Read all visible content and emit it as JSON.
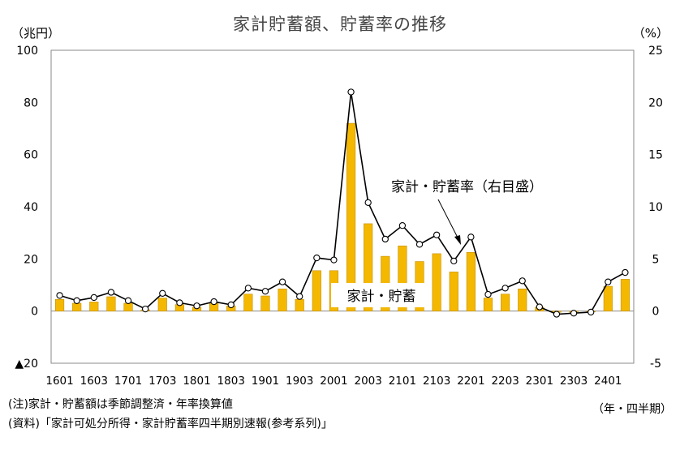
{
  "chart_data": {
    "type": "bar+line",
    "title": "家計貯蓄額、貯蓄率の推移",
    "left_unit": "（兆円）",
    "right_unit": "（%）",
    "x_unit": "（年・四半期）",
    "notes": [
      "(注)家計・貯蓄額は季節調整済・年率換算値",
      "(資料)「家計可処分所得・家計貯蓄率四半期別速報(参考系列)」"
    ],
    "left_axis": {
      "ylim": [
        -20,
        100
      ],
      "ticks": [
        100,
        80,
        60,
        40,
        20,
        0,
        -20
      ],
      "tick_labels": [
        "100",
        "80",
        "60",
        "40",
        "20",
        "0",
        "▲20"
      ]
    },
    "right_axis": {
      "ylim": [
        -5,
        25
      ],
      "ticks": [
        25,
        20,
        15,
        10,
        5,
        0,
        -5
      ],
      "tick_labels": [
        "25",
        "20",
        "15",
        "10",
        "5",
        "0",
        "-5"
      ]
    },
    "x_tick_labels": [
      "1601",
      "1603",
      "1701",
      "1703",
      "1801",
      "1803",
      "1901",
      "1903",
      "2001",
      "2003",
      "2101",
      "2103",
      "2201",
      "2203",
      "2301",
      "2303",
      "2401"
    ],
    "categories": [
      "1601",
      "1602",
      "1603",
      "1604",
      "1701",
      "1702",
      "1703",
      "1704",
      "1801",
      "1802",
      "1803",
      "1804",
      "1901",
      "1902",
      "1903",
      "1904",
      "2001",
      "2002",
      "2003",
      "2004",
      "2101",
      "2102",
      "2103",
      "2104",
      "2201",
      "2202",
      "2203",
      "2204",
      "2301",
      "2302",
      "2303",
      "2304",
      "2401",
      "2402"
    ],
    "series": [
      {
        "name": "家計・貯蓄",
        "type": "bar",
        "axis": "left",
        "color": "#F5B800",
        "values": [
          4.5,
          3,
          3.5,
          5.5,
          3,
          0.5,
          5,
          2.5,
          1.5,
          3,
          2,
          6.5,
          5.8,
          8.5,
          4.5,
          15.5,
          15.5,
          72,
          33.5,
          21,
          25,
          19,
          22,
          15,
          22.5,
          5,
          6.5,
          8.5,
          1.5,
          -0.5,
          -0.5,
          -0.3,
          9.5,
          12.2
        ]
      },
      {
        "name": "家計・貯蓄率（右目盛）",
        "type": "line",
        "axis": "right",
        "color": "#000000",
        "values": [
          1.5,
          1.0,
          1.3,
          1.8,
          1.0,
          0.2,
          1.7,
          0.8,
          0.5,
          0.9,
          0.6,
          2.2,
          1.9,
          2.8,
          1.4,
          5.1,
          4.9,
          21.0,
          10.4,
          6.9,
          8.2,
          6.4,
          7.3,
          4.8,
          7.1,
          1.6,
          2.2,
          2.9,
          0.4,
          -0.3,
          -0.2,
          -0.1,
          2.8,
          3.7
        ]
      }
    ],
    "labels": {
      "bar_label": "家計・貯蓄",
      "line_label": "家計・貯蓄率（右目盛）"
    },
    "grid": false
  }
}
